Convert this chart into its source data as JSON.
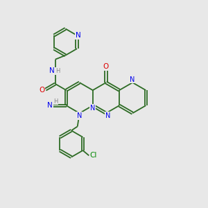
{
  "background_color": "#e8e8e8",
  "bond_color": "#2d6b24",
  "atom_colors": {
    "N": "#0000ee",
    "O": "#dd0000",
    "Cl": "#008800",
    "H": "#888888"
  },
  "figsize": [
    3.0,
    3.0
  ],
  "dpi": 100
}
